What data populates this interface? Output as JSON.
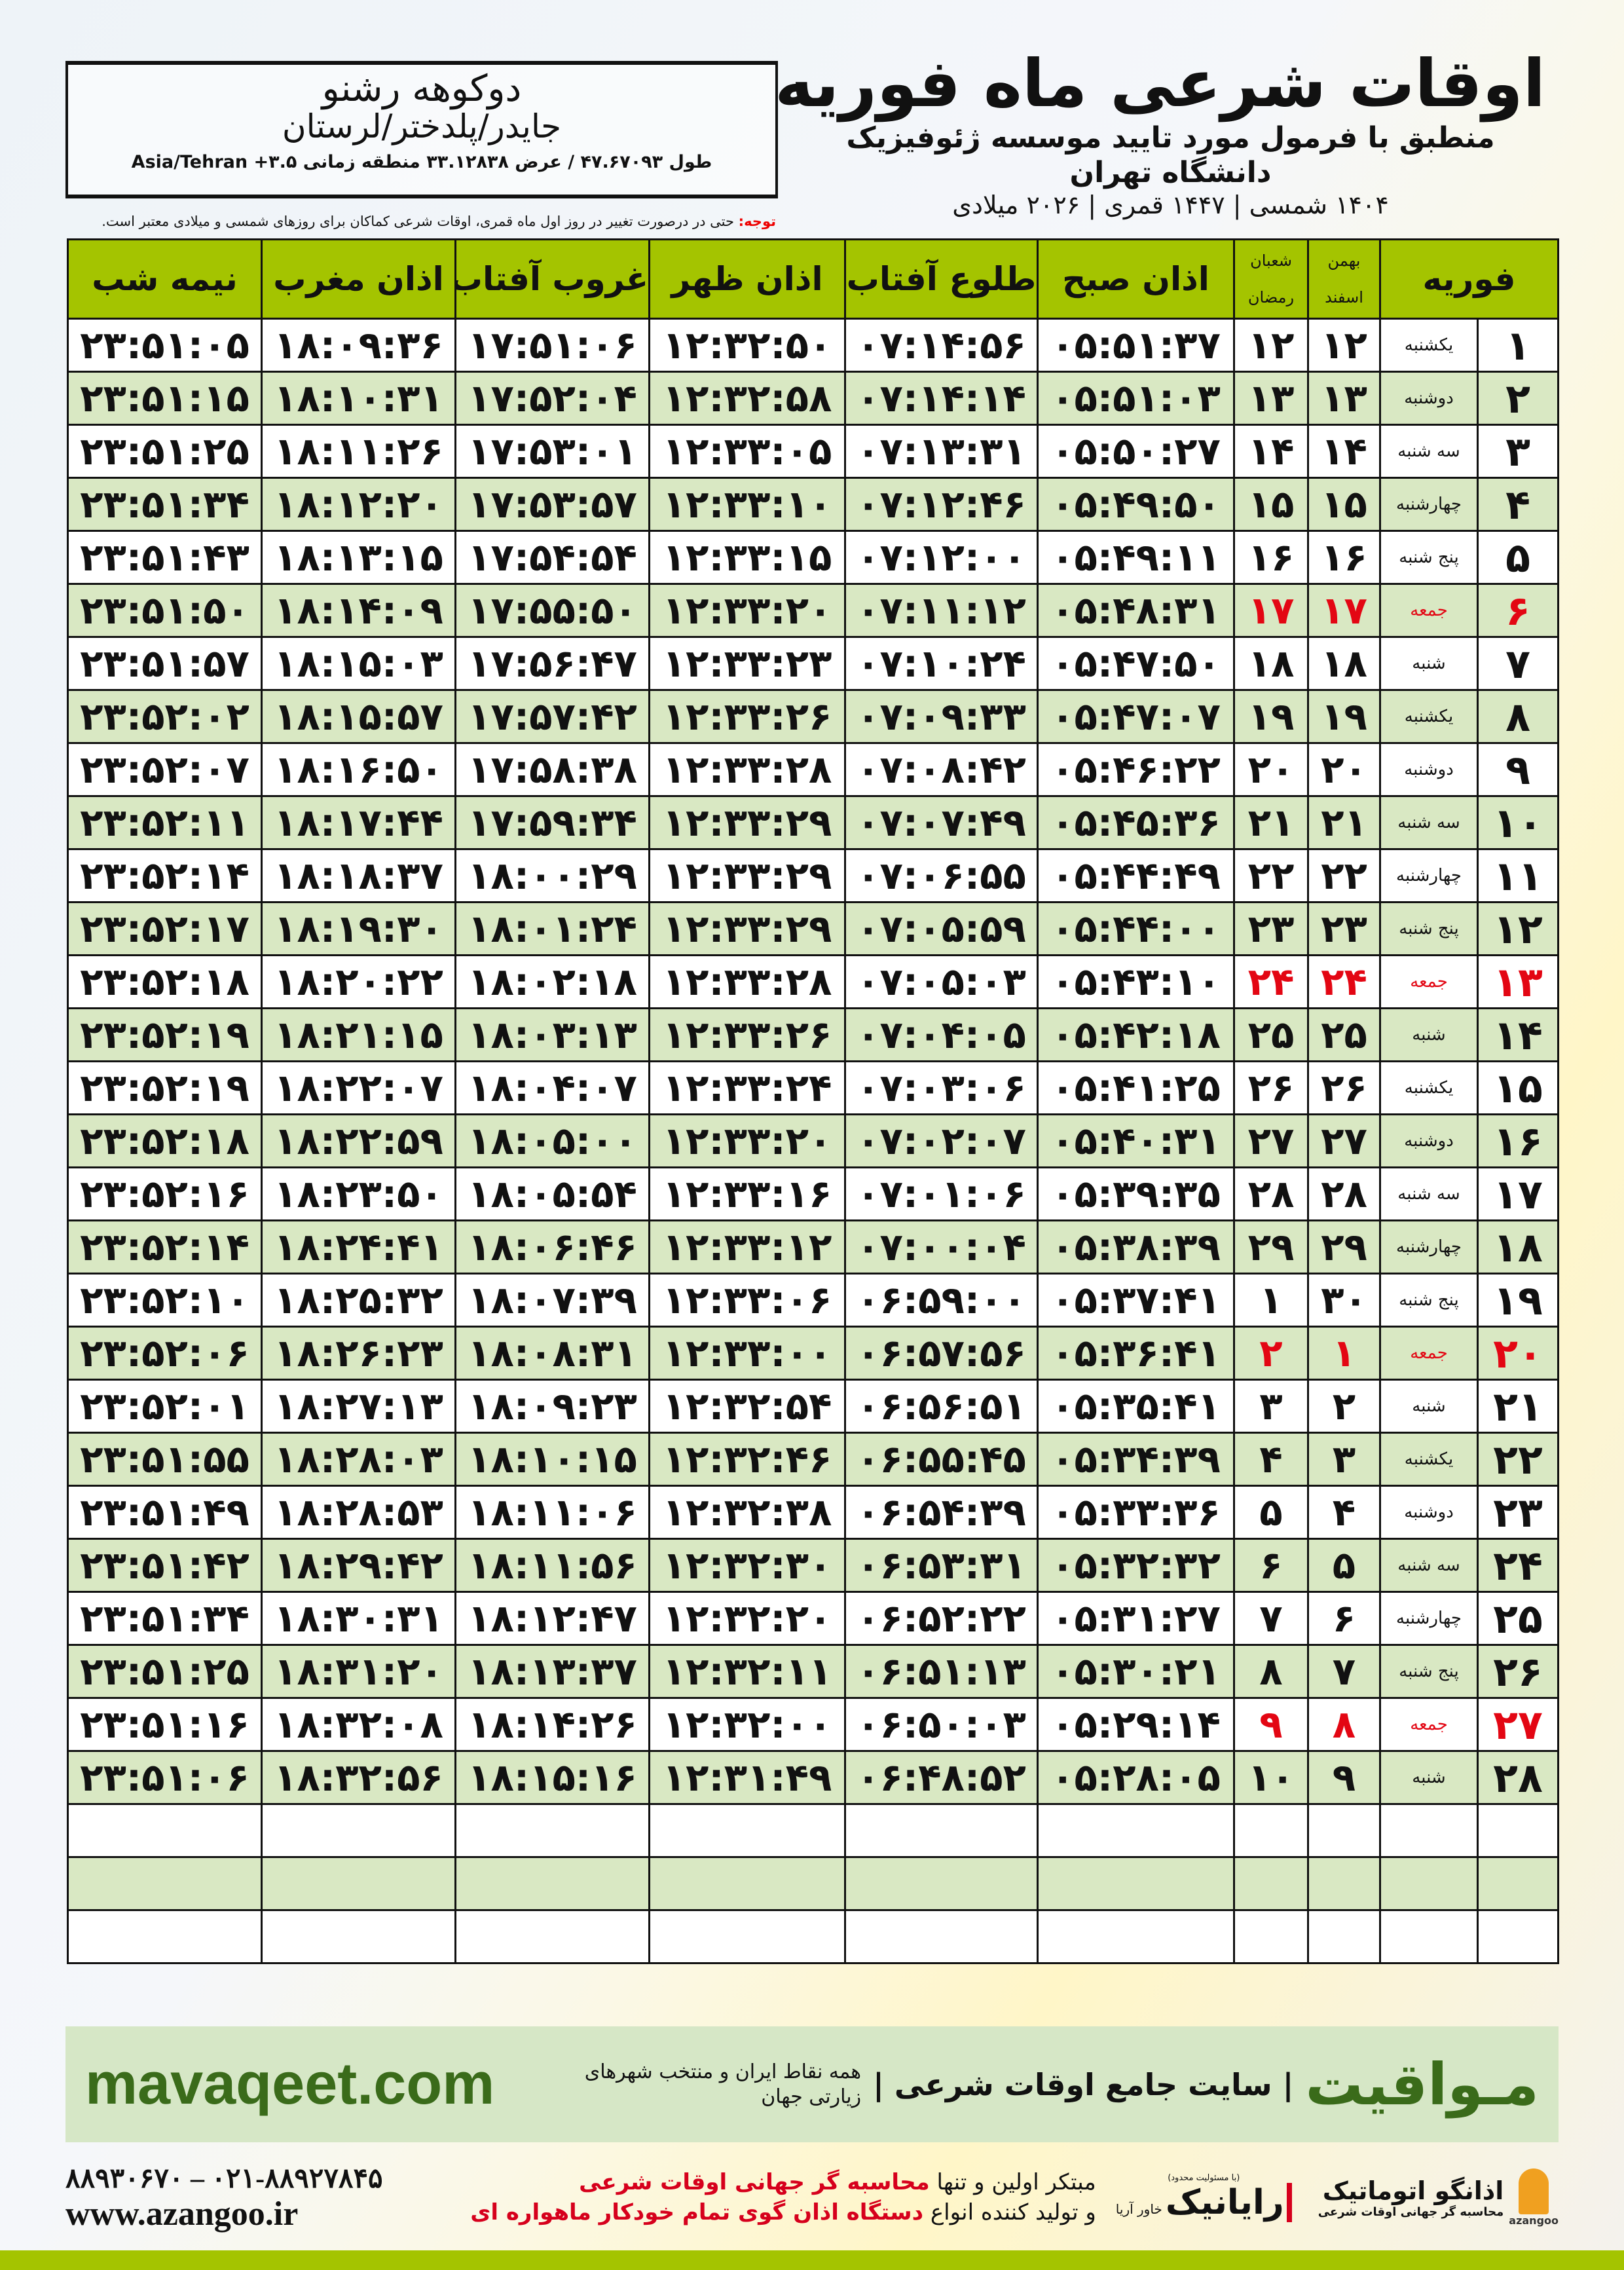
{
  "header": {
    "title": "اوقات شرعی ماه فوریه",
    "subtitle": "منطبق با فرمول مورد تایید موسسه ژئوفیزیک دانشگاه تهران",
    "dates": "۱۴۰۴ شمسی | ۱۴۴۷ قمری | ۲۰۲۶ میلادی"
  },
  "location": {
    "name": "دوکوهه رشنو",
    "region": "جایدر/پلدختر/لرستان",
    "coords": "طول ۴۷.۶۷۰۹۳ / عرض ۳۳.۱۲۸۳۸ منطقه زمانی ۳.۵+ Asia/Tehran"
  },
  "notice": {
    "label": "توجه:",
    "text": " حتی در درصورت تغییر در روز اول ماه قمری، اوقات شرعی کماکان برای روزهای شمسی و میلادی معتبر است."
  },
  "columns": {
    "month": "فوریه",
    "persian_month_1": "بهمن",
    "persian_month_2": "اسفند",
    "lunar_month_1": "شعبان",
    "lunar_month_2": "رمضان",
    "fajr": "اذان صبح",
    "sunrise": "طلوع آفتاب",
    "dhuhr": "اذان ظهر",
    "sunset": "غروب آفتاب",
    "maghrib": "اذان مغرب",
    "midnight": "نیمه شب"
  },
  "colors": {
    "header_green": "#a4c400",
    "friday_red": "#e30613",
    "alt_row": "#d9e8c3"
  },
  "rows": [
    [
      "۱",
      "یکشنبه",
      "۱۲",
      "۱۲",
      "۰۵:۵۱:۳۷",
      "۰۷:۱۴:۵۶",
      "۱۲:۳۲:۵۰",
      "۱۷:۵۱:۰۶",
      "۱۸:۰۹:۳۶",
      "۲۳:۵۱:۰۵"
    ],
    [
      "۲",
      "دوشنبه",
      "۱۳",
      "۱۳",
      "۰۵:۵۱:۰۳",
      "۰۷:۱۴:۱۴",
      "۱۲:۳۲:۵۸",
      "۱۷:۵۲:۰۴",
      "۱۸:۱۰:۳۱",
      "۲۳:۵۱:۱۵"
    ],
    [
      "۳",
      "سه شنبه",
      "۱۴",
      "۱۴",
      "۰۵:۵۰:۲۷",
      "۰۷:۱۳:۳۱",
      "۱۲:۳۳:۰۵",
      "۱۷:۵۳:۰۱",
      "۱۸:۱۱:۲۶",
      "۲۳:۵۱:۲۵"
    ],
    [
      "۴",
      "چهارشنبه",
      "۱۵",
      "۱۵",
      "۰۵:۴۹:۵۰",
      "۰۷:۱۲:۴۶",
      "۱۲:۳۳:۱۰",
      "۱۷:۵۳:۵۷",
      "۱۸:۱۲:۲۰",
      "۲۳:۵۱:۳۴"
    ],
    [
      "۵",
      "پنج شنبه",
      "۱۶",
      "۱۶",
      "۰۵:۴۹:۱۱",
      "۰۷:۱۲:۰۰",
      "۱۲:۳۳:۱۵",
      "۱۷:۵۴:۵۴",
      "۱۸:۱۳:۱۵",
      "۲۳:۵۱:۴۳"
    ],
    [
      "۶",
      "جمعه",
      "۱۷",
      "۱۷",
      "۰۵:۴۸:۳۱",
      "۰۷:۱۱:۱۲",
      "۱۲:۳۳:۲۰",
      "۱۷:۵۵:۵۰",
      "۱۸:۱۴:۰۹",
      "۲۳:۵۱:۵۰"
    ],
    [
      "۷",
      "شنبه",
      "۱۸",
      "۱۸",
      "۰۵:۴۷:۵۰",
      "۰۷:۱۰:۲۴",
      "۱۲:۳۳:۲۳",
      "۱۷:۵۶:۴۷",
      "۱۸:۱۵:۰۳",
      "۲۳:۵۱:۵۷"
    ],
    [
      "۸",
      "یکشنبه",
      "۱۹",
      "۱۹",
      "۰۵:۴۷:۰۷",
      "۰۷:۰۹:۳۳",
      "۱۲:۳۳:۲۶",
      "۱۷:۵۷:۴۲",
      "۱۸:۱۵:۵۷",
      "۲۳:۵۲:۰۲"
    ],
    [
      "۹",
      "دوشنبه",
      "۲۰",
      "۲۰",
      "۰۵:۴۶:۲۲",
      "۰۷:۰۸:۴۲",
      "۱۲:۳۳:۲۸",
      "۱۷:۵۸:۳۸",
      "۱۸:۱۶:۵۰",
      "۲۳:۵۲:۰۷"
    ],
    [
      "۱۰",
      "سه شنبه",
      "۲۱",
      "۲۱",
      "۰۵:۴۵:۳۶",
      "۰۷:۰۷:۴۹",
      "۱۲:۳۳:۲۹",
      "۱۷:۵۹:۳۴",
      "۱۸:۱۷:۴۴",
      "۲۳:۵۲:۱۱"
    ],
    [
      "۱۱",
      "چهارشنبه",
      "۲۲",
      "۲۲",
      "۰۵:۴۴:۴۹",
      "۰۷:۰۶:۵۵",
      "۱۲:۳۳:۲۹",
      "۱۸:۰۰:۲۹",
      "۱۸:۱۸:۳۷",
      "۲۳:۵۲:۱۴"
    ],
    [
      "۱۲",
      "پنج شنبه",
      "۲۳",
      "۲۳",
      "۰۵:۴۴:۰۰",
      "۰۷:۰۵:۵۹",
      "۱۲:۳۳:۲۹",
      "۱۸:۰۱:۲۴",
      "۱۸:۱۹:۳۰",
      "۲۳:۵۲:۱۷"
    ],
    [
      "۱۳",
      "جمعه",
      "۲۴",
      "۲۴",
      "۰۵:۴۳:۱۰",
      "۰۷:۰۵:۰۳",
      "۱۲:۳۳:۲۸",
      "۱۸:۰۲:۱۸",
      "۱۸:۲۰:۲۲",
      "۲۳:۵۲:۱۸"
    ],
    [
      "۱۴",
      "شنبه",
      "۲۵",
      "۲۵",
      "۰۵:۴۲:۱۸",
      "۰۷:۰۴:۰۵",
      "۱۲:۳۳:۲۶",
      "۱۸:۰۳:۱۳",
      "۱۸:۲۱:۱۵",
      "۲۳:۵۲:۱۹"
    ],
    [
      "۱۵",
      "یکشنبه",
      "۲۶",
      "۲۶",
      "۰۵:۴۱:۲۵",
      "۰۷:۰۳:۰۶",
      "۱۲:۳۳:۲۴",
      "۱۸:۰۴:۰۷",
      "۱۸:۲۲:۰۷",
      "۲۳:۵۲:۱۹"
    ],
    [
      "۱۶",
      "دوشنبه",
      "۲۷",
      "۲۷",
      "۰۵:۴۰:۳۱",
      "۰۷:۰۲:۰۷",
      "۱۲:۳۳:۲۰",
      "۱۸:۰۵:۰۰",
      "۱۸:۲۲:۵۹",
      "۲۳:۵۲:۱۸"
    ],
    [
      "۱۷",
      "سه شنبه",
      "۲۸",
      "۲۸",
      "۰۵:۳۹:۳۵",
      "۰۷:۰۱:۰۶",
      "۱۲:۳۳:۱۶",
      "۱۸:۰۵:۵۴",
      "۱۸:۲۳:۵۰",
      "۲۳:۵۲:۱۶"
    ],
    [
      "۱۸",
      "چهارشنبه",
      "۲۹",
      "۲۹",
      "۰۵:۳۸:۳۹",
      "۰۷:۰۰:۰۴",
      "۱۲:۳۳:۱۲",
      "۱۸:۰۶:۴۶",
      "۱۸:۲۴:۴۱",
      "۲۳:۵۲:۱۴"
    ],
    [
      "۱۹",
      "پنج شنبه",
      "۳۰",
      "۱",
      "۰۵:۳۷:۴۱",
      "۰۶:۵۹:۰۰",
      "۱۲:۳۳:۰۶",
      "۱۸:۰۷:۳۹",
      "۱۸:۲۵:۳۲",
      "۲۳:۵۲:۱۰"
    ],
    [
      "۲۰",
      "جمعه",
      "۱",
      "۲",
      "۰۵:۳۶:۴۱",
      "۰۶:۵۷:۵۶",
      "۱۲:۳۳:۰۰",
      "۱۸:۰۸:۳۱",
      "۱۸:۲۶:۲۳",
      "۲۳:۵۲:۰۶"
    ],
    [
      "۲۱",
      "شنبه",
      "۲",
      "۳",
      "۰۵:۳۵:۴۱",
      "۰۶:۵۶:۵۱",
      "۱۲:۳۲:۵۴",
      "۱۸:۰۹:۲۳",
      "۱۸:۲۷:۱۳",
      "۲۳:۵۲:۰۱"
    ],
    [
      "۲۲",
      "یکشنبه",
      "۳",
      "۴",
      "۰۵:۳۴:۳۹",
      "۰۶:۵۵:۴۵",
      "۱۲:۳۲:۴۶",
      "۱۸:۱۰:۱۵",
      "۱۸:۲۸:۰۳",
      "۲۳:۵۱:۵۵"
    ],
    [
      "۲۳",
      "دوشنبه",
      "۴",
      "۵",
      "۰۵:۳۳:۳۶",
      "۰۶:۵۴:۳۹",
      "۱۲:۳۲:۳۸",
      "۱۸:۱۱:۰۶",
      "۱۸:۲۸:۵۳",
      "۲۳:۵۱:۴۹"
    ],
    [
      "۲۴",
      "سه شنبه",
      "۵",
      "۶",
      "۰۵:۳۲:۳۲",
      "۰۶:۵۳:۳۱",
      "۱۲:۳۲:۳۰",
      "۱۸:۱۱:۵۶",
      "۱۸:۲۹:۴۲",
      "۲۳:۵۱:۴۲"
    ],
    [
      "۲۵",
      "چهارشنبه",
      "۶",
      "۷",
      "۰۵:۳۱:۲۷",
      "۰۶:۵۲:۲۲",
      "۱۲:۳۲:۲۰",
      "۱۸:۱۲:۴۷",
      "۱۸:۳۰:۳۱",
      "۲۳:۵۱:۳۴"
    ],
    [
      "۲۶",
      "پنج شنبه",
      "۷",
      "۸",
      "۰۵:۳۰:۲۱",
      "۰۶:۵۱:۱۳",
      "۱۲:۳۲:۱۱",
      "۱۸:۱۳:۳۷",
      "۱۸:۳۱:۲۰",
      "۲۳:۵۱:۲۵"
    ],
    [
      "۲۷",
      "جمعه",
      "۸",
      "۹",
      "۰۵:۲۹:۱۴",
      "۰۶:۵۰:۰۳",
      "۱۲:۳۲:۰۰",
      "۱۸:۱۴:۲۶",
      "۱۸:۳۲:۰۸",
      "۲۳:۵۱:۱۶"
    ],
    [
      "۲۸",
      "شنبه",
      "۹",
      "۱۰",
      "۰۵:۲۸:۰۵",
      "۰۶:۴۸:۵۲",
      "۱۲:۳۱:۴۹",
      "۱۸:۱۵:۱۶",
      "۱۸:۳۲:۵۶",
      "۲۳:۵۱:۰۶"
    ]
  ],
  "friday_label": "جمعه",
  "footer": {
    "site_url": "mavaqeet.com",
    "brand": "مـواقیت",
    "brand_desc": "| سایت جامع اوقات شرعی |",
    "brand_sub": "همه نقاط ایران و منتخب شهرهای زیارتی جهان",
    "phones": "۰۲۱-۸۸۹۲۷۸۴۵ – ۸۸۹۳۰۶۷۰",
    "web": "www.azangoo.ir",
    "promo_1a": "مبتکر اولین و تنها ",
    "promo_1b": "محاسبه گر جهانی اوقات شرعی",
    "promo_2a": "و تولید کننده انواع ",
    "promo_2b": "دستگاه اذان گوی تمام خودکار ماهواره ای",
    "logo1_note": "(با مسئولیت محدود)",
    "logo1_name": "رایانیک",
    "logo1_sub": "خاور آریا",
    "logo2_name": "اذانگو اتوماتیک",
    "logo2_sub": "محاسبه گر جهانی اوقات شرعی",
    "logo2_latin": "azangoo"
  }
}
